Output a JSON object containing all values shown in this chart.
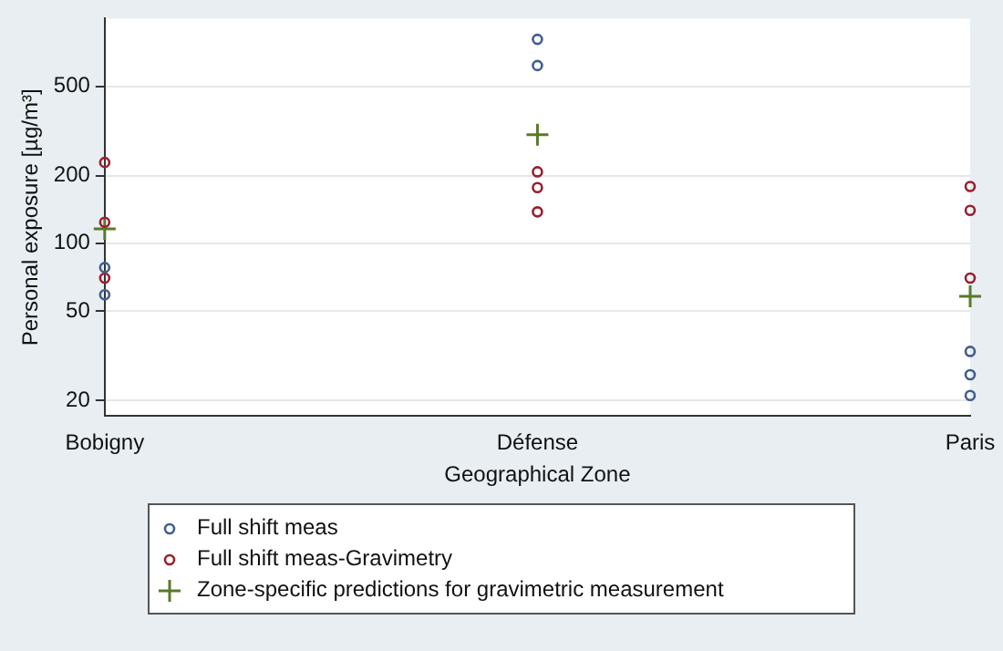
{
  "chart_data": {
    "type": "scatter",
    "xlabel": "Geographical Zone",
    "ylabel": "Personal exposure [µg/m³]",
    "categories": [
      "Bobigny",
      "Défense",
      "Paris"
    ],
    "series": [
      {
        "name": "Full shift meas",
        "color": "#3f5f8f",
        "marker": "circle",
        "x": [
          "Bobigny",
          "Bobigny",
          "Défense",
          "Défense",
          "Paris",
          "Paris",
          "Paris"
        ],
        "values": [
          78,
          59,
          809,
          618,
          33,
          26,
          21
        ]
      },
      {
        "name": "Full shift meas-Gravimetry",
        "color": "#9a2030",
        "marker": "circle",
        "x": [
          "Bobigny",
          "Bobigny",
          "Bobigny",
          "Défense",
          "Défense",
          "Défense",
          "Paris",
          "Paris",
          "Paris"
        ],
        "values": [
          229,
          124,
          70,
          208,
          177,
          138,
          179,
          140,
          70
        ]
      },
      {
        "name": "Zone-specific predictions for gravimetric measurement",
        "color": "#5a7a2a",
        "marker": "cross",
        "x": [
          "Bobigny",
          "Défense",
          "Paris"
        ],
        "values": [
          116,
          304,
          58
        ]
      }
    ],
    "log": "y",
    "ylim": [
      17,
      1000
    ],
    "yticks": [
      20,
      50,
      100,
      200,
      500
    ],
    "grid": "y",
    "legend": "bottom"
  }
}
